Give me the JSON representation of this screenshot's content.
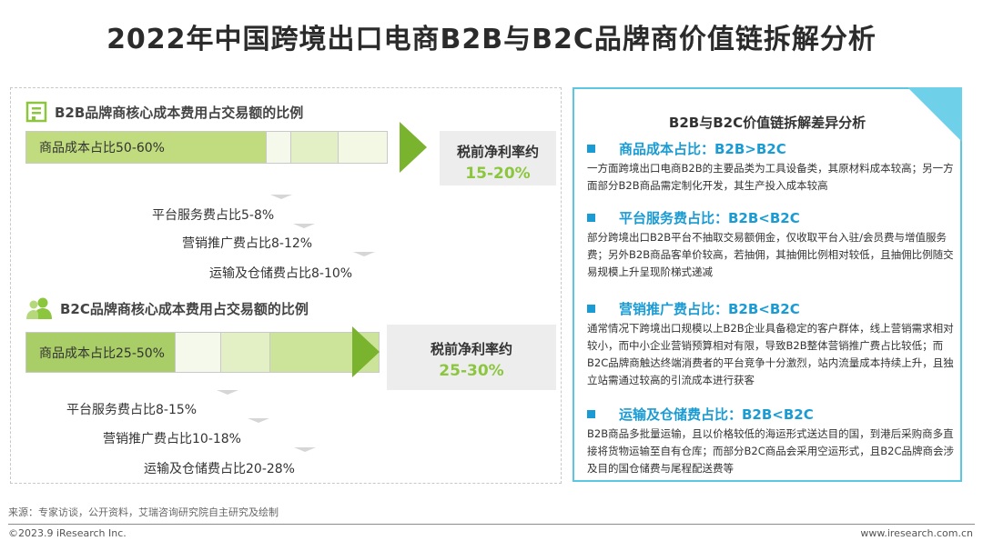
{
  "title": "2022年中国跨境出口电商B2B与B2C品牌商价值链拆解分析",
  "b2b": {
    "heading": "B2B品牌商核心成本费用占交易额的比例",
    "icon": "building-icon",
    "main_label": "商品成本占比50-60%",
    "result_label": "税前净利率约",
    "result_value": "15-20%",
    "lines": [
      "平台服务费占比5-8%",
      "营销推广费占比8-12%",
      "运输及仓储费占比8-10%"
    ]
  },
  "b2c": {
    "heading": "B2C品牌商核心成本费用占交易额的比例",
    "icon": "users-icon",
    "main_label": "商品成本占比25-50%",
    "result_label": "税前净利率约",
    "result_value": "25-30%",
    "lines": [
      "平台服务费占比8-15%",
      "营销推广费占比10-18%",
      "运输及仓储费占比20-28%"
    ]
  },
  "diff": {
    "title": "B2B与B2C价值链拆解差异分析",
    "items": [
      {
        "head": "商品成本占比：B2B>B2C",
        "body": "一方面跨境出口电商B2B的主要品类为工具设备类，其原材料成本较高；另一方面部分B2B商品需定制化开发，其生产投入成本较高"
      },
      {
        "head": "平台服务费占比：B2B<B2C",
        "body": "部分跨境出口B2B平台不抽取交易额佣金，仅收取平台入驻/会员费与增值服务费；另外B2B商品客单价较高，若抽佣，其抽佣比例相对较低，且抽佣比例随交易规模上升呈现阶梯式递减"
      },
      {
        "head": "营销推广费占比：B2B<B2C",
        "body": "通常情况下跨境出口规模以上B2B企业具备稳定的客户群体，线上营销需求相对较小，而中小企业营销预算相对有限，导致B2B整体营销推广费占比较低；而B2C品牌商触达终端消费者的平台竞争十分激烈，站内流量成本持续上升，且独立站需通过较高的引流成本进行获客"
      },
      {
        "head": "运输及仓储费占比：B2B<B2C",
        "body": "B2B商品多批量运输，且以价格较低的海运形式送达目的国，到港后采购商多直接将货物运输至自有仓库；而部分B2C商品会采用空运形式，且B2C品牌商会涉及目的国仓储费与尾程配送费等"
      }
    ]
  },
  "footer": {
    "source": "来源：专家访谈，公开资料，艾瑞咨询研究院自主研究及绘制",
    "copyright": "©2023.9 iResearch Inc.",
    "website": "www.iresearch.com.cn"
  },
  "colors": {
    "green_main": "#c0dc7e",
    "green_arrow": "#7ab32e",
    "green_text": "#8cc63f",
    "blue_accent": "#1b9bd3",
    "panel_border": "#5bc7e2"
  }
}
